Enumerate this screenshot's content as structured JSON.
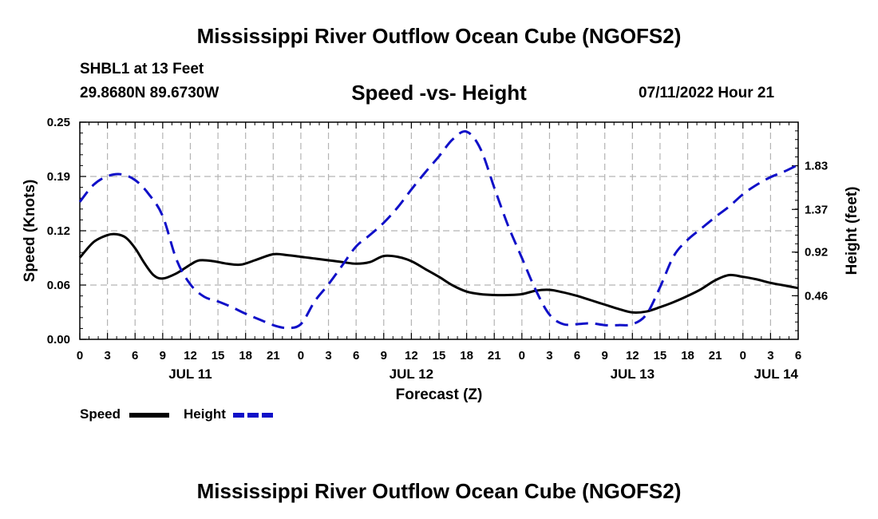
{
  "header": {
    "title": "Mississippi River Outflow Ocean Cube (NGOFS2)",
    "station": "SHBL1 at 13 Feet",
    "coordinates": "29.8680N  89.6730W",
    "chart_title": "Speed -vs- Height",
    "datetime": "07/11/2022 Hour 21"
  },
  "legend": {
    "speed_label": "Speed",
    "height_label": "Height"
  },
  "footer": {
    "title": "Mississippi River Outflow Ocean Cube (NGOFS2)"
  },
  "colors": {
    "speed": "#000000",
    "height": "#1010c8",
    "grid": "#b4b4b4"
  },
  "chart_data": {
    "type": "line",
    "title": "Speed -vs- Height",
    "xlabel": "Forecast (Z)",
    "ylabel": "Speed (Knots)",
    "y2label": "Height (feet)",
    "x_unit": "forecast hours from JUL 11 00Z",
    "xlim": [
      0,
      78
    ],
    "ylim": [
      0,
      0.25
    ],
    "y2lim": [
      0.0,
      2.29
    ],
    "y_ticks": [
      "0.00",
      "0.06",
      "0.12",
      "0.19",
      "0.25"
    ],
    "y_tick_values": [
      0,
      0.0625,
      0.125,
      0.1875,
      0.25
    ],
    "y2_ticks": [
      "0.46",
      "0.92",
      "1.37",
      "1.83"
    ],
    "y2_tick_values": [
      0.46,
      0.92,
      1.37,
      1.83
    ],
    "x_tick_labels": [
      "0",
      "3",
      "6",
      "9",
      "12",
      "15",
      "18",
      "21",
      "0",
      "3",
      "6",
      "9",
      "12",
      "15",
      "18",
      "21",
      "0",
      "3",
      "6",
      "9",
      "12",
      "15",
      "18",
      "21",
      "0",
      "3",
      "6"
    ],
    "date_labels": [
      {
        "label": "JUL 11",
        "hour": 12
      },
      {
        "label": "JUL 12",
        "hour": 36
      },
      {
        "label": "JUL 13",
        "hour": 60
      },
      {
        "label": "JUL 14",
        "hour": 78
      }
    ],
    "series": [
      {
        "name": "Speed",
        "axis": "left",
        "style": "solid",
        "x": [
          0,
          1.5,
          3,
          4,
          5,
          6,
          7,
          8,
          9,
          10.5,
          12,
          13,
          14.5,
          16,
          17.5,
          19,
          21,
          22.5,
          24,
          25.5,
          27,
          28.5,
          30,
          31.5,
          33,
          34.5,
          36,
          37.5,
          39,
          40.5,
          42,
          43.5,
          45,
          46.5,
          48,
          49.5,
          51,
          52.5,
          54,
          55.5,
          57,
          58.5,
          60,
          61.5,
          63,
          64.5,
          66,
          67.5,
          69,
          70.5,
          72,
          73.5,
          75,
          76.5,
          78
        ],
        "values": [
          0.094,
          0.112,
          0.12,
          0.121,
          0.117,
          0.105,
          0.088,
          0.074,
          0.07,
          0.076,
          0.086,
          0.091,
          0.09,
          0.087,
          0.086,
          0.091,
          0.098,
          0.097,
          0.095,
          0.093,
          0.091,
          0.089,
          0.087,
          0.089,
          0.096,
          0.095,
          0.09,
          0.081,
          0.072,
          0.062,
          0.055,
          0.052,
          0.051,
          0.051,
          0.052,
          0.056,
          0.057,
          0.054,
          0.05,
          0.045,
          0.04,
          0.035,
          0.031,
          0.032,
          0.037,
          0.043,
          0.05,
          0.058,
          0.068,
          0.074,
          0.072,
          0.069,
          0.065,
          0.062,
          0.059
        ]
      },
      {
        "name": "Height",
        "axis": "right",
        "style": "dashed",
        "x": [
          0,
          1.5,
          3,
          4.5,
          6,
          7.5,
          9,
          10.5,
          12,
          13.5,
          15,
          16.5,
          18,
          19.5,
          21,
          22.5,
          24,
          25.5,
          27,
          28.5,
          30,
          31.5,
          33,
          34.5,
          36,
          37.5,
          39,
          40.5,
          42,
          43.5,
          45,
          46.5,
          48,
          49.5,
          51,
          52.5,
          54,
          55.5,
          57,
          58.5,
          60,
          61.5,
          63,
          64.5,
          66,
          67.5,
          69,
          70.5,
          72,
          73.5,
          75,
          76.5,
          78
        ],
        "values": [
          1.45,
          1.63,
          1.72,
          1.74,
          1.68,
          1.53,
          1.3,
          0.84,
          0.58,
          0.45,
          0.4,
          0.34,
          0.27,
          0.21,
          0.15,
          0.12,
          0.16,
          0.4,
          0.58,
          0.78,
          0.98,
          1.1,
          1.23,
          1.39,
          1.58,
          1.76,
          1.93,
          2.11,
          2.19,
          2.01,
          1.6,
          1.2,
          0.86,
          0.52,
          0.26,
          0.16,
          0.16,
          0.17,
          0.15,
          0.15,
          0.16,
          0.26,
          0.55,
          0.88,
          1.05,
          1.17,
          1.29,
          1.4,
          1.53,
          1.63,
          1.71,
          1.77,
          1.84
        ]
      }
    ]
  }
}
